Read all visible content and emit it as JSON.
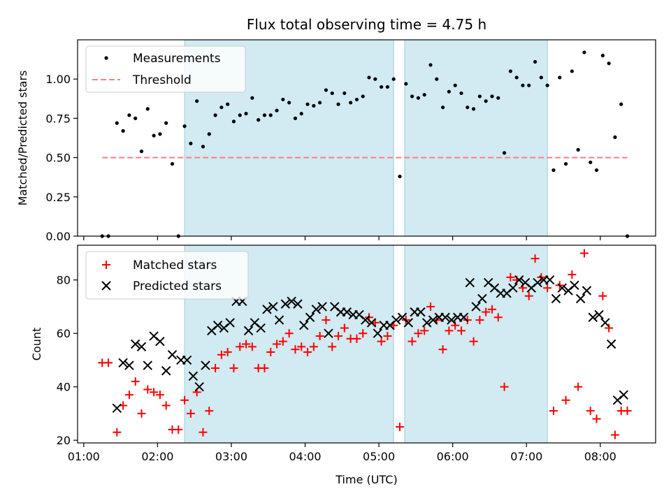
{
  "chart_data": [
    {
      "type": "scatter",
      "title": "Flux total observing time = 4.75 h",
      "ylabel": "Matched/Predicted stars",
      "xlabel": "",
      "xlim": [
        "01:00",
        "08:45"
      ],
      "ylim": [
        0,
        1.25
      ],
      "yticks": [
        0.0,
        0.25,
        0.5,
        0.75,
        1.0
      ],
      "ytick_labels": [
        "0.00",
        "0.25",
        "0.50",
        "0.75",
        "1.00"
      ],
      "legend": "top-left",
      "grid": false,
      "shaded_intervals": [
        [
          "02:22",
          "05:12"
        ],
        [
          "05:21",
          "07:17"
        ]
      ],
      "threshold": {
        "name": "Threshold",
        "y": 0.5,
        "x_range": [
          "01:15",
          "08:22"
        ],
        "color": "#ff7f7f",
        "style": "dashed"
      },
      "series": [
        {
          "name": "Measurements",
          "color": "#000000",
          "marker": "dot",
          "points": [
            [
              "01:15",
              0.0
            ],
            [
              "01:20",
              0.0
            ],
            [
              "01:27",
              0.72
            ],
            [
              "01:32",
              0.67
            ],
            [
              "01:37",
              0.77
            ],
            [
              "01:42",
              0.75
            ],
            [
              "01:47",
              0.54
            ],
            [
              "01:52",
              0.81
            ],
            [
              "01:57",
              0.64
            ],
            [
              "02:02",
              0.65
            ],
            [
              "02:07",
              0.72
            ],
            [
              "02:12",
              0.46
            ],
            [
              "02:17",
              0.0
            ],
            [
              "02:22",
              0.7
            ],
            [
              "02:27",
              0.59
            ],
            [
              "02:32",
              0.86
            ],
            [
              "02:37",
              0.57
            ],
            [
              "02:42",
              0.65
            ],
            [
              "02:47",
              0.77
            ],
            [
              "02:52",
              0.82
            ],
            [
              "02:57",
              0.84
            ],
            [
              "03:02",
              0.73
            ],
            [
              "03:07",
              0.77
            ],
            [
              "03:12",
              0.78
            ],
            [
              "03:17",
              0.88
            ],
            [
              "03:22",
              0.74
            ],
            [
              "03:27",
              0.77
            ],
            [
              "03:32",
              0.77
            ],
            [
              "03:37",
              0.8
            ],
            [
              "03:42",
              0.87
            ],
            [
              "03:47",
              0.85
            ],
            [
              "03:52",
              0.75
            ],
            [
              "03:57",
              0.78
            ],
            [
              "04:02",
              0.84
            ],
            [
              "04:07",
              0.83
            ],
            [
              "04:12",
              0.85
            ],
            [
              "04:17",
              0.93
            ],
            [
              "04:22",
              0.91
            ],
            [
              "04:27",
              0.84
            ],
            [
              "04:32",
              0.91
            ],
            [
              "04:37",
              0.85
            ],
            [
              "04:42",
              0.87
            ],
            [
              "04:47",
              0.89
            ],
            [
              "04:52",
              1.01
            ],
            [
              "04:57",
              1.0
            ],
            [
              "05:02",
              0.95
            ],
            [
              "05:07",
              0.95
            ],
            [
              "05:12",
              1.0
            ],
            [
              "05:17",
              0.38
            ],
            [
              "05:22",
              0.97
            ],
            [
              "05:27",
              0.89
            ],
            [
              "05:32",
              0.88
            ],
            [
              "05:37",
              0.9
            ],
            [
              "05:42",
              1.09
            ],
            [
              "05:47",
              1.0
            ],
            [
              "05:52",
              0.82
            ],
            [
              "05:57",
              0.92
            ],
            [
              "06:02",
              0.96
            ],
            [
              "06:07",
              0.91
            ],
            [
              "06:12",
              0.82
            ],
            [
              "06:17",
              0.81
            ],
            [
              "06:22",
              0.89
            ],
            [
              "06:27",
              0.86
            ],
            [
              "06:32",
              0.89
            ],
            [
              "06:37",
              0.88
            ],
            [
              "06:42",
              0.53
            ],
            [
              "06:47",
              1.05
            ],
            [
              "06:52",
              1.01
            ],
            [
              "06:57",
              0.96
            ],
            [
              "07:02",
              0.96
            ],
            [
              "07:07",
              1.11
            ],
            [
              "07:12",
              1.01
            ],
            [
              "07:17",
              0.96
            ],
            [
              "07:22",
              0.42
            ],
            [
              "07:27",
              1.01
            ],
            [
              "07:32",
              0.46
            ],
            [
              "07:37",
              1.05
            ],
            [
              "07:42",
              0.55
            ],
            [
              "07:47",
              1.17
            ],
            [
              "07:52",
              0.47
            ],
            [
              "07:57",
              0.42
            ],
            [
              "08:02",
              1.15
            ],
            [
              "08:07",
              1.1
            ],
            [
              "08:12",
              0.63
            ],
            [
              "08:17",
              0.84
            ],
            [
              "08:22",
              0.0
            ]
          ]
        }
      ]
    },
    {
      "type": "scatter",
      "title": "",
      "ylabel": "Count",
      "xlabel": "Time (UTC)",
      "xlim": [
        "01:00",
        "08:45"
      ],
      "ylim": [
        19,
        93
      ],
      "yticks": [
        20,
        40,
        60,
        80
      ],
      "ytick_labels": [
        "20",
        "40",
        "60",
        "80"
      ],
      "xticks": [
        "01:00",
        "02:00",
        "03:00",
        "04:00",
        "05:00",
        "06:00",
        "07:00",
        "08:00"
      ],
      "legend": "top-left",
      "grid": false,
      "shaded_intervals": [
        [
          "02:22",
          "05:12"
        ],
        [
          "05:21",
          "07:17"
        ]
      ],
      "series": [
        {
          "name": "Matched stars",
          "color": "#ff0000",
          "marker": "plus",
          "points": [
            [
              "01:15",
              49
            ],
            [
              "01:20",
              49
            ],
            [
              "01:27",
              23
            ],
            [
              "01:32",
              33
            ],
            [
              "01:37",
              37
            ],
            [
              "01:42",
              42
            ],
            [
              "01:47",
              30
            ],
            [
              "01:52",
              39
            ],
            [
              "01:57",
              38
            ],
            [
              "02:02",
              37
            ],
            [
              "02:07",
              33
            ],
            [
              "02:12",
              24
            ],
            [
              "02:17",
              24
            ],
            [
              "02:22",
              35
            ],
            [
              "02:27",
              30
            ],
            [
              "02:32",
              38
            ],
            [
              "02:37",
              23
            ],
            [
              "02:42",
              31
            ],
            [
              "02:47",
              47
            ],
            [
              "02:52",
              52
            ],
            [
              "02:57",
              53
            ],
            [
              "03:02",
              47
            ],
            [
              "03:07",
              55
            ],
            [
              "03:12",
              56
            ],
            [
              "03:17",
              55
            ],
            [
              "03:22",
              47
            ],
            [
              "03:27",
              47
            ],
            [
              "03:32",
              53
            ],
            [
              "03:37",
              56
            ],
            [
              "03:42",
              57
            ],
            [
              "03:47",
              60
            ],
            [
              "03:52",
              54
            ],
            [
              "03:57",
              55
            ],
            [
              "04:02",
              53
            ],
            [
              "04:07",
              55
            ],
            [
              "04:12",
              59
            ],
            [
              "04:17",
              65
            ],
            [
              "04:22",
              55
            ],
            [
              "04:27",
              59
            ],
            [
              "04:32",
              62
            ],
            [
              "04:37",
              58
            ],
            [
              "04:42",
              58
            ],
            [
              "04:47",
              60
            ],
            [
              "04:52",
              66
            ],
            [
              "04:57",
              64
            ],
            [
              "05:02",
              57
            ],
            [
              "05:07",
              59
            ],
            [
              "05:12",
              63
            ],
            [
              "05:17",
              25
            ],
            [
              "05:22",
              65
            ],
            [
              "05:27",
              57
            ],
            [
              "05:32",
              60
            ],
            [
              "05:37",
              61
            ],
            [
              "05:42",
              70
            ],
            [
              "05:47",
              65
            ],
            [
              "05:52",
              54
            ],
            [
              "05:57",
              61
            ],
            [
              "06:02",
              63
            ],
            [
              "06:07",
              61
            ],
            [
              "06:12",
              65
            ],
            [
              "06:17",
              57
            ],
            [
              "06:22",
              65
            ],
            [
              "06:27",
              68
            ],
            [
              "06:32",
              69
            ],
            [
              "06:37",
              66
            ],
            [
              "06:42",
              40
            ],
            [
              "06:47",
              81
            ],
            [
              "06:52",
              80
            ],
            [
              "06:57",
              77
            ],
            [
              "07:02",
              74
            ],
            [
              "07:07",
              88
            ],
            [
              "07:12",
              81
            ],
            [
              "07:17",
              77
            ],
            [
              "07:22",
              31
            ],
            [
              "07:27",
              78
            ],
            [
              "07:32",
              35
            ],
            [
              "07:37",
              82
            ],
            [
              "07:42",
              40
            ],
            [
              "07:47",
              90
            ],
            [
              "07:52",
              31
            ],
            [
              "07:57",
              28
            ],
            [
              "08:02",
              74
            ],
            [
              "08:07",
              62
            ],
            [
              "08:12",
              22
            ],
            [
              "08:17",
              31
            ],
            [
              "08:22",
              31
            ]
          ]
        },
        {
          "name": "Predicted stars",
          "color": "#000000",
          "marker": "x",
          "points": [
            [
              "01:27",
              32
            ],
            [
              "01:32",
              49
            ],
            [
              "01:37",
              48
            ],
            [
              "01:42",
              56
            ],
            [
              "01:47",
              55
            ],
            [
              "01:52",
              48
            ],
            [
              "01:57",
              59
            ],
            [
              "02:02",
              57
            ],
            [
              "02:07",
              46
            ],
            [
              "02:12",
              52
            ],
            [
              "02:19",
              50
            ],
            [
              "02:24",
              50
            ],
            [
              "02:29",
              44
            ],
            [
              "02:34",
              40
            ],
            [
              "02:39",
              48
            ],
            [
              "02:44",
              61
            ],
            [
              "02:49",
              63
            ],
            [
              "02:54",
              62
            ],
            [
              "02:59",
              64
            ],
            [
              "03:04",
              72
            ],
            [
              "03:09",
              72
            ],
            [
              "03:14",
              61
            ],
            [
              "03:19",
              64
            ],
            [
              "03:24",
              62
            ],
            [
              "03:29",
              69
            ],
            [
              "03:34",
              70
            ],
            [
              "03:39",
              65
            ],
            [
              "03:44",
              71
            ],
            [
              "03:49",
              72
            ],
            [
              "03:54",
              71
            ],
            [
              "03:59",
              63
            ],
            [
              "04:04",
              66
            ],
            [
              "04:09",
              69
            ],
            [
              "04:14",
              70
            ],
            [
              "04:19",
              60
            ],
            [
              "04:24",
              70
            ],
            [
              "04:29",
              68
            ],
            [
              "04:34",
              68
            ],
            [
              "04:39",
              67
            ],
            [
              "04:44",
              67
            ],
            [
              "04:49",
              65
            ],
            [
              "04:54",
              64
            ],
            [
              "04:59",
              60
            ],
            [
              "05:04",
              63
            ],
            [
              "05:09",
              63
            ],
            [
              "05:14",
              65
            ],
            [
              "05:19",
              66
            ],
            [
              "05:24",
              64
            ],
            [
              "05:29",
              68
            ],
            [
              "05:34",
              68
            ],
            [
              "05:39",
              64
            ],
            [
              "05:44",
              65
            ],
            [
              "05:49",
              66
            ],
            [
              "05:54",
              66
            ],
            [
              "05:59",
              65
            ],
            [
              "06:04",
              66
            ],
            [
              "06:09",
              66
            ],
            [
              "06:14",
              79
            ],
            [
              "06:19",
              70
            ],
            [
              "06:24",
              73
            ],
            [
              "06:29",
              79
            ],
            [
              "06:34",
              77
            ],
            [
              "06:39",
              75
            ],
            [
              "06:44",
              75
            ],
            [
              "06:49",
              77
            ],
            [
              "06:54",
              80
            ],
            [
              "06:59",
              79
            ],
            [
              "07:04",
              77
            ],
            [
              "07:09",
              79
            ],
            [
              "07:14",
              80
            ],
            [
              "07:19",
              80
            ],
            [
              "07:24",
              73
            ],
            [
              "07:29",
              77
            ],
            [
              "07:34",
              76
            ],
            [
              "07:39",
              78
            ],
            [
              "07:44",
              73
            ],
            [
              "07:49",
              76
            ],
            [
              "07:54",
              66
            ],
            [
              "07:59",
              67
            ],
            [
              "08:04",
              64
            ],
            [
              "08:09",
              56
            ],
            [
              "08:14",
              35
            ],
            [
              "08:19",
              37
            ]
          ]
        }
      ]
    }
  ]
}
